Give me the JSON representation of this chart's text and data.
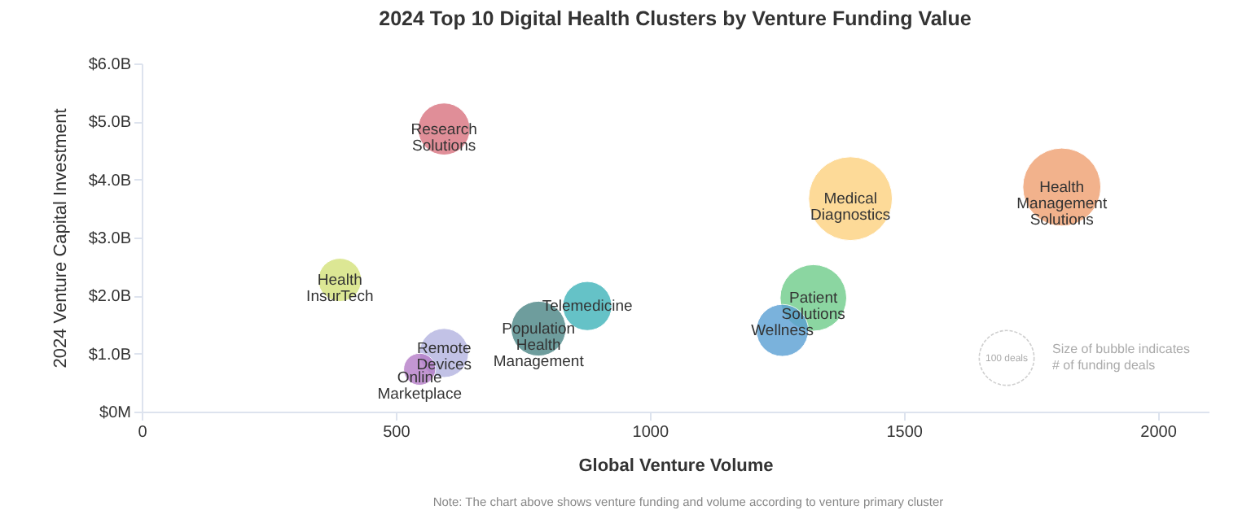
{
  "chart_data": {
    "type": "bubble",
    "title": "2024 Top 10 Digital Health Clusters by Venture Funding Value",
    "xlabel": "Global Venture Volume",
    "ylabel": "2024 Venture Capital Investment",
    "xlim": [
      0,
      2100
    ],
    "xticks": [
      0,
      500,
      1000,
      1500,
      2000
    ],
    "ylim": [
      0,
      6
    ],
    "yticks": [
      {
        "value": 0,
        "label": "$0M"
      },
      {
        "value": 1,
        "label": "$1.0B"
      },
      {
        "value": 2,
        "label": "$2.0B"
      },
      {
        "value": 3,
        "label": "$3.0B"
      },
      {
        "value": 4,
        "label": "$4.0B"
      },
      {
        "value": 5,
        "label": "$5.0B"
      },
      {
        "value": 6,
        "label": "$6.0B"
      }
    ],
    "grid": false,
    "legend": false,
    "size_legend": [
      {
        "value": 100,
        "label": "100 deals"
      }
    ],
    "series": [
      {
        "name": "Research Solutions",
        "color": "#d9737f",
        "x": [
          595
        ],
        "values": [
          4.87
        ],
        "sizes": [
          90
        ]
      },
      {
        "name": "Health InsurTech",
        "color": "#d4e27a",
        "x": [
          390
        ],
        "values": [
          2.27
        ],
        "sizes": [
          62
        ]
      },
      {
        "name": "Remote Devices",
        "color": "#b3b3e0",
        "x": [
          595
        ],
        "values": [
          1.01
        ],
        "sizes": [
          80
        ]
      },
      {
        "name": "Online Marketplace",
        "color": "#b57cc7",
        "x": [
          547
        ],
        "values": [
          0.73
        ],
        "sizes": [
          34
        ]
      },
      {
        "name": "Population Health Management",
        "color": "#4a8585",
        "x": [
          781
        ],
        "values": [
          1.43
        ],
        "sizes": [
          100
        ]
      },
      {
        "name": "Telemedicine",
        "color": "#3fb3ba",
        "x": [
          877
        ],
        "values": [
          1.82
        ],
        "sizes": [
          80
        ]
      },
      {
        "name": "Medical Diagnostics",
        "color": "#fdd17f",
        "x": [
          1395
        ],
        "values": [
          3.67
        ],
        "sizes": [
          233
        ]
      },
      {
        "name": "Health Management Solutions",
        "color": "#f0a070",
        "x": [
          1811
        ],
        "values": [
          3.87
        ],
        "sizes": [
          202
        ]
      },
      {
        "name": "Patient Solutions",
        "color": "#6fcc8a",
        "x": [
          1322
        ],
        "values": [
          1.96
        ],
        "sizes": [
          147
        ]
      },
      {
        "name": "Wellness",
        "color": "#5a9fd4",
        "x": [
          1261
        ],
        "values": [
          1.4
        ],
        "sizes": [
          90
        ]
      }
    ],
    "annotations": [
      "Size of bubble indicates\n# of funding deals",
      "Note: The chart above shows venture funding and volume according to venture primary cluster"
    ]
  }
}
